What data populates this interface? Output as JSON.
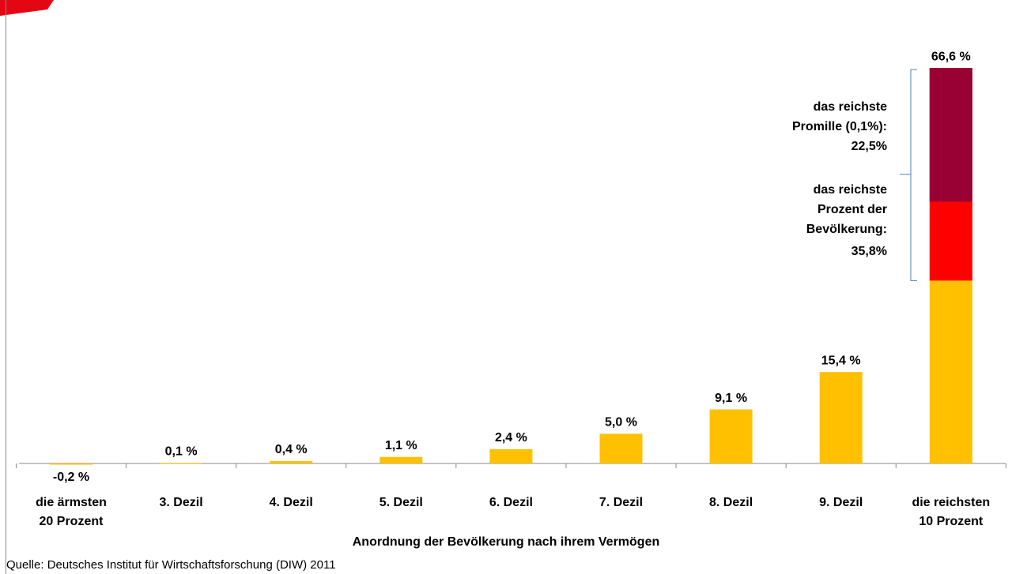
{
  "chart_data": {
    "type": "bar",
    "categories": [
      "die ärmsten\n20 Prozent",
      "3. Dezil",
      "4. Dezil",
      "5. Dezil",
      "6. Dezil",
      "7. Dezil",
      "8. Dezil",
      "9. Dezil",
      "die reichsten\n10 Prozent"
    ],
    "values": [
      -0.2,
      0.1,
      0.4,
      1.1,
      2.4,
      5.0,
      9.1,
      15.4,
      66.6
    ],
    "value_labels": [
      "-0,2 %",
      "0,1 %",
      "0,4 %",
      "1,1 %",
      "2,4 %",
      "5,0 %",
      "9,1 %",
      "15,4 %",
      "66,6 %"
    ],
    "color": "#ffc000",
    "nested": [
      {
        "name": "das reichste\nPromille (0,1%):",
        "value": 22.5,
        "value_label": "22,5%",
        "color": "#990033"
      },
      {
        "name": "das reichste\nProzent der\nBevölkerung:",
        "value": 35.8,
        "value_label": "35,8%",
        "color": "#ff0000"
      }
    ],
    "xlabel": "Anordnung der Bevölkerung  nach ihrem Vermögen",
    "source": "Quelle: Deutsches Institut für Wirtschaftsforschung (DIW) 2011"
  }
}
